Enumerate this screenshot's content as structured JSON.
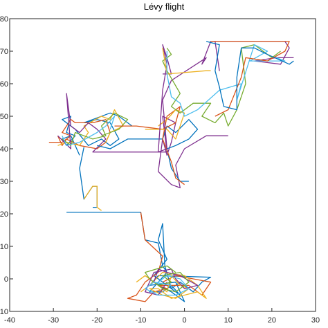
{
  "chart_data": {
    "type": "line",
    "title": "Lévy flight",
    "xlabel": "",
    "ylabel": "",
    "xlim": [
      -40,
      30
    ],
    "ylim": [
      -10,
      80
    ],
    "grid": false,
    "x_ticks": [
      "-40",
      "-30",
      "-20",
      "-10",
      "0",
      "10",
      "20",
      "30"
    ],
    "y_ticks": [
      "-10",
      "0",
      "10",
      "20",
      "30",
      "40",
      "50",
      "60",
      "70",
      "80"
    ],
    "series": [
      {
        "color": "#0072BD",
        "points": [
          [
            -27,
            20.5
          ],
          [
            -10,
            20.5
          ],
          [
            -9,
            12
          ],
          [
            -6,
            11
          ],
          [
            -5,
            4
          ],
          [
            -4,
            2
          ],
          [
            -8,
            -4
          ],
          [
            -5,
            -4
          ],
          [
            -3,
            -2
          ],
          [
            -1,
            -5
          ],
          [
            -7,
            1
          ],
          [
            -4,
            6
          ],
          [
            -6,
            12
          ],
          [
            -5,
            17
          ],
          [
            -4.5,
            4
          ],
          [
            -3,
            -3
          ],
          [
            -1,
            -1
          ],
          [
            0,
            -2
          ],
          [
            2,
            -4
          ],
          [
            4,
            -1
          ],
          [
            6,
            0.5
          ],
          [
            -6,
            1
          ],
          [
            -8,
            -2
          ],
          [
            -2,
            -1
          ],
          [
            0,
            -7
          ],
          [
            -3,
            -4
          ],
          [
            -6,
            -2
          ]
        ]
      },
      {
        "color": "#D95319",
        "points": [
          [
            -10,
            20.5
          ],
          [
            -9,
            12
          ],
          [
            -5,
            7
          ],
          [
            -6,
            2
          ],
          [
            -9,
            -1
          ],
          [
            -11,
            -5
          ],
          [
            -13,
            -6
          ],
          [
            -9,
            -7
          ],
          [
            -7,
            -4
          ],
          [
            -4,
            -3
          ],
          [
            -6,
            -2
          ],
          [
            -2,
            -2
          ],
          [
            1,
            -2
          ],
          [
            4,
            -5
          ],
          [
            6,
            -1
          ],
          [
            2,
            0
          ],
          [
            -2,
            1
          ],
          [
            -5,
            -1
          ]
        ]
      },
      {
        "color": "#EDB120",
        "points": [
          [
            -11,
            -1
          ],
          [
            -9,
            1
          ],
          [
            -7,
            -1
          ],
          [
            -4,
            -4
          ],
          [
            -3,
            1
          ],
          [
            -1,
            -2
          ],
          [
            1,
            -3
          ],
          [
            -2,
            -6
          ],
          [
            -5,
            -5
          ],
          [
            -8,
            -3
          ],
          [
            -6,
            -3
          ],
          [
            -3,
            -6
          ],
          [
            3,
            -4
          ],
          [
            5,
            -6
          ],
          [
            3,
            -2
          ],
          [
            0,
            1
          ],
          [
            -5,
            2
          ],
          [
            -8,
            -2
          ],
          [
            -10,
            -4
          ]
        ]
      },
      {
        "color": "#7E2F8E",
        "points": [
          [
            -4,
            -1
          ],
          [
            -6,
            -5
          ],
          [
            -9,
            -4
          ],
          [
            -7,
            2
          ],
          [
            -3,
            3
          ],
          [
            -2,
            0
          ],
          [
            0,
            -3
          ],
          [
            3,
            -2
          ],
          [
            -1,
            1
          ],
          [
            -4,
            2
          ],
          [
            -6,
            3
          ],
          [
            -7,
            -1
          ]
        ]
      },
      {
        "color": "#77AC30",
        "points": [
          [
            -6,
            -2
          ],
          [
            -3,
            -1
          ],
          [
            -5,
            1
          ],
          [
            -1,
            2
          ],
          [
            1,
            -1
          ],
          [
            -2,
            -4
          ],
          [
            -5,
            -3
          ],
          [
            -8,
            0
          ],
          [
            -9,
            2
          ],
          [
            -4,
            4
          ],
          [
            -2,
            2
          ]
        ]
      },
      {
        "color": "#4DBEEE",
        "points": [
          [
            -3,
            -2
          ],
          [
            -7,
            -1
          ],
          [
            -9,
            -3
          ],
          [
            -6,
            -5
          ],
          [
            -2,
            -5
          ],
          [
            1,
            -3
          ],
          [
            -1,
            0
          ],
          [
            -4,
            1
          ],
          [
            -6,
            -1
          ]
        ]
      },
      {
        "color": "#0072BD",
        "points": [
          [
            -23,
            40.5
          ],
          [
            -24,
            34
          ],
          [
            -23,
            24.5
          ],
          [
            -21,
            28.5
          ],
          [
            -20,
            28.5
          ],
          [
            -20,
            22
          ],
          [
            -21,
            22
          ]
        ]
      },
      {
        "color": "#EDB120",
        "points": [
          [
            -23,
            24.5
          ],
          [
            -21,
            28.5
          ],
          [
            -20,
            28.5
          ],
          [
            -20,
            22
          ],
          [
            -19,
            21
          ]
        ]
      },
      {
        "color": "#0072BD",
        "points": [
          [
            -24,
            38
          ],
          [
            -26,
            44
          ],
          [
            -28,
            43
          ],
          [
            -27,
            41
          ],
          [
            -25,
            44
          ],
          [
            -27,
            45
          ],
          [
            -26,
            50
          ],
          [
            -28,
            49
          ],
          [
            -25,
            46
          ],
          [
            -22,
            41
          ],
          [
            -19,
            43
          ],
          [
            -17,
            41
          ],
          [
            -15,
            43
          ],
          [
            -17,
            48
          ],
          [
            -20,
            49
          ],
          [
            -23,
            48
          ],
          [
            -17,
            51
          ],
          [
            -15,
            50
          ],
          [
            -12,
            47
          ]
        ]
      },
      {
        "color": "#D95319",
        "points": [
          [
            -31,
            42
          ],
          [
            -28,
            42
          ],
          [
            -26,
            44
          ],
          [
            -28,
            45
          ],
          [
            -26,
            49
          ],
          [
            -25,
            48
          ],
          [
            -21,
            48
          ],
          [
            -18,
            49
          ],
          [
            -17,
            45
          ],
          [
            -18,
            42
          ],
          [
            -20,
            40
          ],
          [
            -24,
            41
          ],
          [
            -27,
            43
          ],
          [
            -28,
            41
          ],
          [
            -29,
            44
          ]
        ]
      },
      {
        "color": "#EDB120",
        "points": [
          [
            -29,
            41
          ],
          [
            -27,
            42
          ],
          [
            -24,
            41
          ],
          [
            -22,
            45
          ],
          [
            -23,
            47
          ],
          [
            -19,
            50
          ],
          [
            -17,
            49
          ],
          [
            -16,
            52
          ],
          [
            -14,
            47
          ],
          [
            -17,
            45
          ],
          [
            -18,
            42
          ]
        ]
      },
      {
        "color": "#7E2F8E",
        "points": [
          [
            -29,
            44
          ],
          [
            -26,
            40
          ],
          [
            -27,
            57
          ],
          [
            -26,
            47
          ],
          [
            -24,
            45
          ],
          [
            -22,
            48
          ],
          [
            -20,
            46
          ],
          [
            -18,
            43
          ],
          [
            -21,
            39
          ],
          [
            -4,
            39
          ],
          [
            -5,
            50
          ],
          [
            -2,
            48
          ],
          [
            -3,
            42
          ],
          [
            -4,
            38
          ],
          [
            -5,
            43
          ],
          [
            -6,
            33
          ],
          [
            -3,
            29
          ],
          [
            -1,
            28
          ],
          [
            -2,
            35
          ],
          [
            0,
            40
          ],
          [
            5,
            44
          ],
          [
            10,
            44
          ]
        ]
      },
      {
        "color": "#77AC30",
        "points": [
          [
            -28,
            43
          ],
          [
            -26,
            41
          ],
          [
            -25,
            45
          ],
          [
            -21,
            43
          ],
          [
            -18,
            44
          ],
          [
            -19,
            47
          ],
          [
            -16,
            51
          ],
          [
            -13,
            49
          ],
          [
            -15,
            46
          ],
          [
            -19,
            44
          ]
        ]
      },
      {
        "color": "#4DBEEE",
        "points": [
          [
            -28,
            44
          ],
          [
            -27,
            41
          ],
          [
            -24,
            42
          ],
          [
            -20,
            45
          ],
          [
            -18,
            47
          ],
          [
            -16,
            50
          ],
          [
            -17,
            46
          ]
        ]
      },
      {
        "color": "#0072BD",
        "points": [
          [
            -20,
            41
          ],
          [
            -17,
            40
          ],
          [
            -13,
            43
          ],
          [
            -5,
            43
          ],
          [
            -4,
            47
          ],
          [
            -2,
            45
          ],
          [
            1,
            49
          ],
          [
            3,
            46
          ],
          [
            1,
            43
          ],
          [
            -2,
            41
          ],
          [
            -4,
            40
          ],
          [
            -3,
            34
          ],
          [
            -1,
            30
          ],
          [
            1,
            30
          ]
        ]
      },
      {
        "color": "#D95319",
        "points": [
          [
            -16,
            47
          ],
          [
            -11,
            47
          ],
          [
            -5,
            46
          ],
          [
            -2,
            48
          ],
          [
            -1,
            53
          ],
          [
            -4,
            50
          ],
          [
            -5,
            43
          ],
          [
            -3,
            36
          ],
          [
            -2,
            31
          ],
          [
            0,
            29
          ]
        ]
      },
      {
        "color": "#EDB120",
        "points": [
          [
            -9,
            46
          ],
          [
            -4,
            46
          ],
          [
            -2,
            43
          ],
          [
            -1,
            47
          ],
          [
            0,
            51
          ],
          [
            -2,
            52
          ],
          [
            -4,
            49
          ],
          [
            -6,
            47
          ]
        ]
      },
      {
        "color": "#7E2F8E",
        "points": [
          [
            -5,
            63
          ],
          [
            -3,
            63
          ],
          [
            -4,
            68
          ],
          [
            -5,
            72
          ],
          [
            -4,
            66
          ],
          [
            -5,
            58
          ],
          [
            -6,
            39
          ],
          [
            -4,
            40
          ],
          [
            -5,
            55
          ],
          [
            -3,
            61
          ],
          [
            5,
            68
          ],
          [
            4,
            66
          ],
          [
            6,
            73
          ],
          [
            7,
            73
          ],
          [
            8,
            64
          ],
          [
            7,
            73
          ],
          [
            23,
            73
          ],
          [
            24,
            71
          ],
          [
            22,
            66
          ],
          [
            16,
            67
          ],
          [
            21,
            68
          ],
          [
            24,
            68
          ],
          [
            25,
            68
          ]
        ]
      },
      {
        "color": "#77AC30",
        "points": [
          [
            -4,
            71
          ],
          [
            -3,
            69
          ],
          [
            -5,
            67
          ],
          [
            -4,
            64
          ],
          [
            -1,
            57
          ],
          [
            -3,
            53
          ],
          [
            -1,
            51
          ],
          [
            2,
            54
          ],
          [
            6,
            54
          ],
          [
            4,
            50
          ],
          [
            7,
            48
          ],
          [
            9,
            51
          ],
          [
            10,
            47
          ],
          [
            12,
            52
          ],
          [
            14,
            60
          ],
          [
            13,
            71
          ],
          [
            16,
            72
          ],
          [
            18,
            70
          ],
          [
            20,
            68
          ],
          [
            22,
            70
          ]
        ]
      },
      {
        "color": "#EDB120",
        "points": [
          [
            -5,
            71
          ],
          [
            -4,
            63
          ],
          [
            5,
            64
          ],
          [
            6,
            64
          ]
        ]
      },
      {
        "color": "#4DBEEE",
        "points": [
          [
            -4,
            70
          ],
          [
            -4,
            63
          ],
          [
            -3,
            56
          ],
          [
            -1,
            54
          ],
          [
            0,
            50
          ],
          [
            3,
            52
          ],
          [
            8,
            58
          ],
          [
            13,
            60
          ],
          [
            12,
            55
          ],
          [
            16,
            72
          ],
          [
            19,
            70
          ],
          [
            15,
            67
          ],
          [
            23,
            67
          ],
          [
            21,
            68
          ]
        ]
      },
      {
        "color": "#D95319",
        "points": [
          [
            6,
            73
          ],
          [
            10,
            73
          ],
          [
            24,
            73
          ],
          [
            23,
            70
          ],
          [
            19,
            67
          ],
          [
            14,
            68
          ],
          [
            13,
            62
          ],
          [
            10,
            52
          ],
          [
            7,
            50
          ]
        ]
      },
      {
        "color": "#0072BD",
        "points": [
          [
            5,
            73
          ],
          [
            8,
            72
          ],
          [
            7,
            64
          ],
          [
            8,
            59
          ],
          [
            9,
            53
          ],
          [
            12,
            52
          ],
          [
            12,
            62
          ],
          [
            13,
            71
          ],
          [
            16,
            71
          ],
          [
            19,
            69
          ],
          [
            24,
            66
          ],
          [
            25,
            67
          ]
        ]
      }
    ]
  }
}
